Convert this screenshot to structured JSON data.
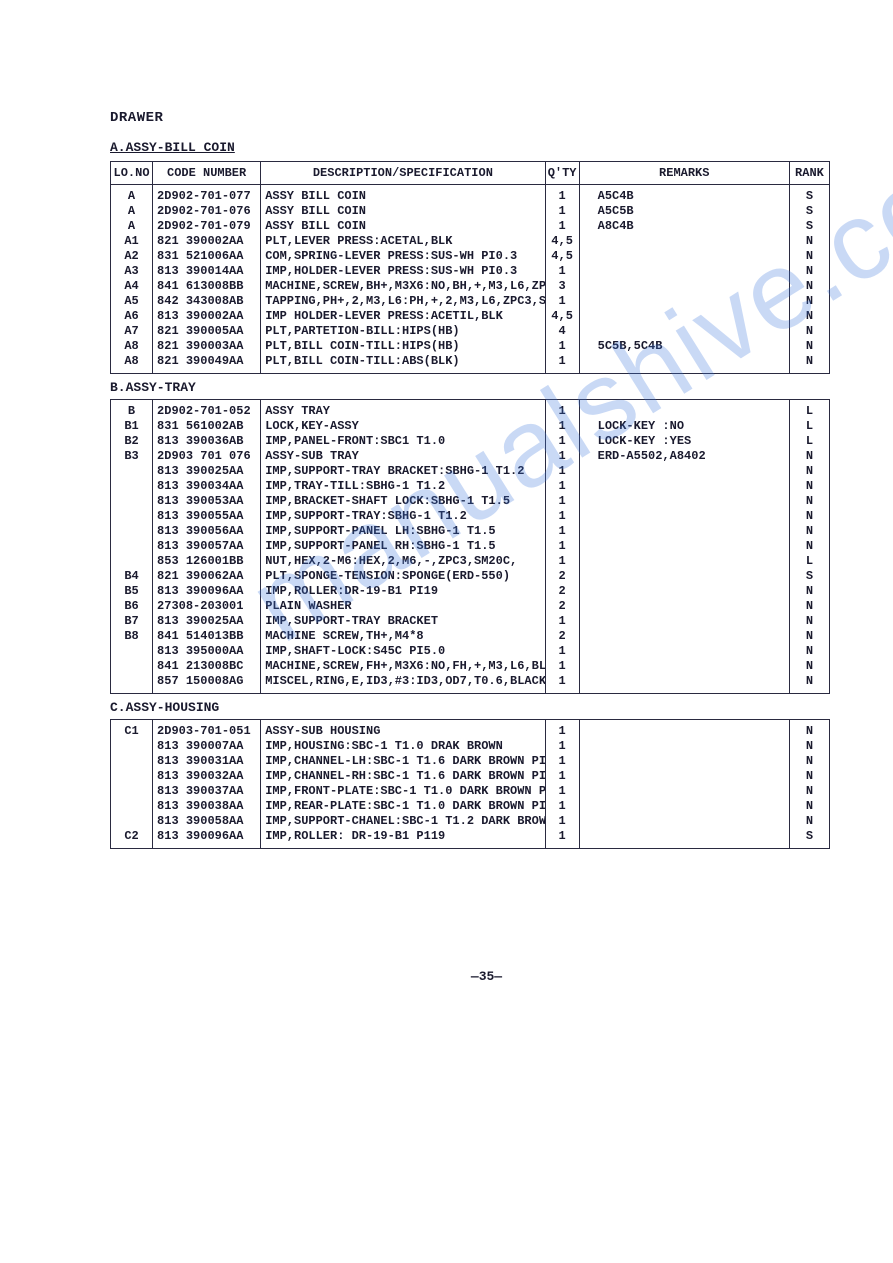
{
  "heading": "DRAWER",
  "sectionA": {
    "label": "A.ASSY-BILL COIN",
    "labelB": "B.ASSY-TRAY",
    "labelC": "C.ASSY-HOUSING",
    "headers": {
      "lo": "LO.NO",
      "code": "CODE NUMBER",
      "desc": "DESCRIPTION/SPECIFICATION",
      "qty": "Q'TY",
      "rem": "REMARKS",
      "rank": "RANK"
    }
  },
  "rowsA": [
    {
      "lo": "A",
      "code": "2D902-701-077",
      "desc": "ASSY BILL COIN",
      "qty": "1",
      "rem": "A5C4B",
      "rank": "S"
    },
    {
      "lo": "A",
      "code": "2D902-701-076",
      "desc": "ASSY BILL COIN",
      "qty": "1",
      "rem": "A5C5B",
      "rank": "S"
    },
    {
      "lo": "A",
      "code": "2D902-701-079",
      "desc": "ASSY BILL COIN",
      "qty": "1",
      "rem": "A8C4B",
      "rank": "S"
    },
    {
      "lo": "A1",
      "code": "821 390002AA",
      "desc": "PLT,LEVER PRESS:ACETAL,BLK",
      "qty": "4,5",
      "rem": "",
      "rank": "N"
    },
    {
      "lo": "A2",
      "code": "831 521006AA",
      "desc": "COM,SPRING-LEVER PRESS:SUS-WH PI0.3",
      "qty": "4,5",
      "rem": "",
      "rank": "N"
    },
    {
      "lo": "A3",
      "code": "813 390014AA",
      "desc": "IMP,HOLDER-LEVER PRESS:SUS-WH PI0.3",
      "qty": "1",
      "rem": "",
      "rank": "N"
    },
    {
      "lo": "A4",
      "code": "841 613008BB",
      "desc": "MACHINE,SCREW,BH+,M3X6:NO,BH,+,M3,L6,ZP",
      "qty": "3",
      "rem": "",
      "rank": "N"
    },
    {
      "lo": "A5",
      "code": "842 343008AB",
      "desc": "TAPPING,PH+,2,M3,L6:PH,+,2,M3,L6,ZPC3,S",
      "qty": "1",
      "rem": "",
      "rank": "N"
    },
    {
      "lo": "A6",
      "code": "813 390002AA",
      "desc": "IMP HOLDER-LEVER PRESS:ACETIL,BLK",
      "qty": "4,5",
      "rem": "",
      "rank": "N"
    },
    {
      "lo": "A7",
      "code": "821 390005AA",
      "desc": "PLT,PARTETION-BILL:HIPS(HB)",
      "qty": "4",
      "rem": "",
      "rank": "N"
    },
    {
      "lo": "A8",
      "code": "821 390003AA",
      "desc": "PLT,BILL COIN-TILL:HIPS(HB)",
      "qty": "1",
      "rem": "5C5B,5C4B",
      "rank": "N"
    },
    {
      "lo": "A8",
      "code": "821 390049AA",
      "desc": "PLT,BILL COIN-TILL:ABS(BLK)",
      "qty": "1",
      "rem": "",
      "rank": "N"
    }
  ],
  "rowsB": [
    {
      "lo": "B",
      "code": "2D902-701-052",
      "desc": "ASSY TRAY",
      "qty": "1",
      "rem": "",
      "rank": "L"
    },
    {
      "lo": "B1",
      "code": "831 561002AB",
      "desc": "LOCK,KEY-ASSY",
      "qty": "1",
      "rem": "LOCK-KEY :NO",
      "rank": "L"
    },
    {
      "lo": "B2",
      "code": "813 390036AB",
      "desc": "IMP,PANEL-FRONT:SBC1 T1.0",
      "qty": "1",
      "rem": "LOCK-KEY :YES",
      "rank": "L"
    },
    {
      "lo": "B3",
      "code": "2D903 701 076",
      "desc": " ASSY-SUB TRAY",
      "qty": "1",
      "rem": "ERD-A5502,A8402",
      "rank": "N"
    },
    {
      "lo": "",
      "code": "813 390025AA",
      "desc": "IMP,SUPPORT-TRAY BRACKET:SBHG-1 T1.2",
      "qty": "1",
      "rem": "",
      "rank": "N"
    },
    {
      "lo": "",
      "code": "813 390034AA",
      "desc": "IMP,TRAY-TILL:SBHG-1 T1.2",
      "qty": "1",
      "rem": "",
      "rank": "N"
    },
    {
      "lo": "",
      "code": "813 390053AA",
      "desc": "IMP,BRACKET-SHAFT LOCK:SBHG-1 T1.5",
      "qty": "1",
      "rem": "",
      "rank": "N"
    },
    {
      "lo": "",
      "code": "813 390055AA",
      "desc": "IMP,SUPPORT-TRAY:SBHG-1 T1.2",
      "qty": "1",
      "rem": "",
      "rank": "N"
    },
    {
      "lo": "",
      "code": "813 390056AA",
      "desc": "IMP,SUPPORT-PANEL LH:SBHG-1 T1.5",
      "qty": "1",
      "rem": "",
      "rank": "N"
    },
    {
      "lo": "",
      "code": "813 390057AA",
      "desc": "IMP,SUPPORT-PANEL RH:SBHG-1 T1.5",
      "qty": "1",
      "rem": "",
      "rank": "N"
    },
    {
      "lo": "",
      "code": "853 126001BB",
      "desc": "NUT,HEX,2-M6:HEX,2,M6,-,ZPC3,SM20C,",
      "qty": "1",
      "rem": "",
      "rank": "L"
    },
    {
      "lo": "B4",
      "code": "821 390062AA",
      "desc": "PLT,SPONGE-TENSION:SPONGE(ERD-550)",
      "qty": "2",
      "rem": "",
      "rank": "S"
    },
    {
      "lo": "B5",
      "code": "813 390096AA",
      "desc": "IMP,ROLLER:DR-19-B1 PI19",
      "qty": "2",
      "rem": "",
      "rank": "N"
    },
    {
      "lo": "B6",
      "code": "27308-203001",
      "desc": "PLAIN WASHER",
      "qty": "2",
      "rem": "",
      "rank": "N"
    },
    {
      "lo": "B7",
      "code": "813 390025AA",
      "desc": "IMP,SUPPORT-TRAY BRACKET",
      "qty": "1",
      "rem": "",
      "rank": "N"
    },
    {
      "lo": "B8",
      "code": "841 514013BB",
      "desc": "MACHINE SCREW,TH+,M4*8",
      "qty": "2",
      "rem": "",
      "rank": "N"
    },
    {
      "lo": "",
      "code": "813 395000AA",
      "desc": "IMP,SHAFT-LOCK:S45C PI5.0",
      "qty": "1",
      "rem": "",
      "rank": "N"
    },
    {
      "lo": "",
      "code": "841 213008BC",
      "desc": "MACHINE,SCREW,FH+,M3X6:NO,FH,+,M3,L6,BL",
      "qty": "1",
      "rem": "",
      "rank": "N"
    },
    {
      "lo": "",
      "code": "857 150008AG",
      "desc": "MISCEL,RING,E,ID3,#3:ID3,OD7,T0.6,BLACK",
      "qty": "1",
      "rem": "",
      "rank": "N"
    }
  ],
  "rowsC": [
    {
      "lo": "C1",
      "code": "2D903-701-051",
      "desc": "ASSY-SUB HOUSING",
      "qty": "1",
      "rem": "",
      "rank": "N"
    },
    {
      "lo": "",
      "code": "813 390007AA",
      "desc": "IMP,HOUSING:SBC-1 T1.0 DRAK BROWN",
      "qty": "1",
      "rem": "",
      "rank": "N"
    },
    {
      "lo": "",
      "code": "813 390031AA",
      "desc": "IMP,CHANNEL-LH:SBC-1 T1.6 DARK BROWN PI",
      "qty": "1",
      "rem": "",
      "rank": "N"
    },
    {
      "lo": "",
      "code": "813 390032AA",
      "desc": "IMP,CHANNEL-RH:SBC-1 T1.6 DARK BROWN PI",
      "qty": "1",
      "rem": "",
      "rank": "N"
    },
    {
      "lo": "",
      "code": "813 390037AA",
      "desc": "IMP,FRONT-PLATE:SBC-1 T1.0 DARK BROWN P",
      "qty": "1",
      "rem": "",
      "rank": "N"
    },
    {
      "lo": "",
      "code": "813 390038AA",
      "desc": "IMP,REAR-PLATE:SBC-1 T1.0 DARK BROWN PI",
      "qty": "1",
      "rem": "",
      "rank": "N"
    },
    {
      "lo": "",
      "code": "813 390058AA",
      "desc": "IMP,SUPPORT-CHANEL:SBC-1 T1.2 DARK BROW",
      "qty": "1",
      "rem": "",
      "rank": "N"
    },
    {
      "lo": "C2",
      "code": "813 390096AA",
      "desc": "IMP,ROLLER: DR-19-B1 P119",
      "qty": "1",
      "rem": "",
      "rank": "S"
    }
  ],
  "watermark": "manualshive.com",
  "pagenum": "—35—"
}
